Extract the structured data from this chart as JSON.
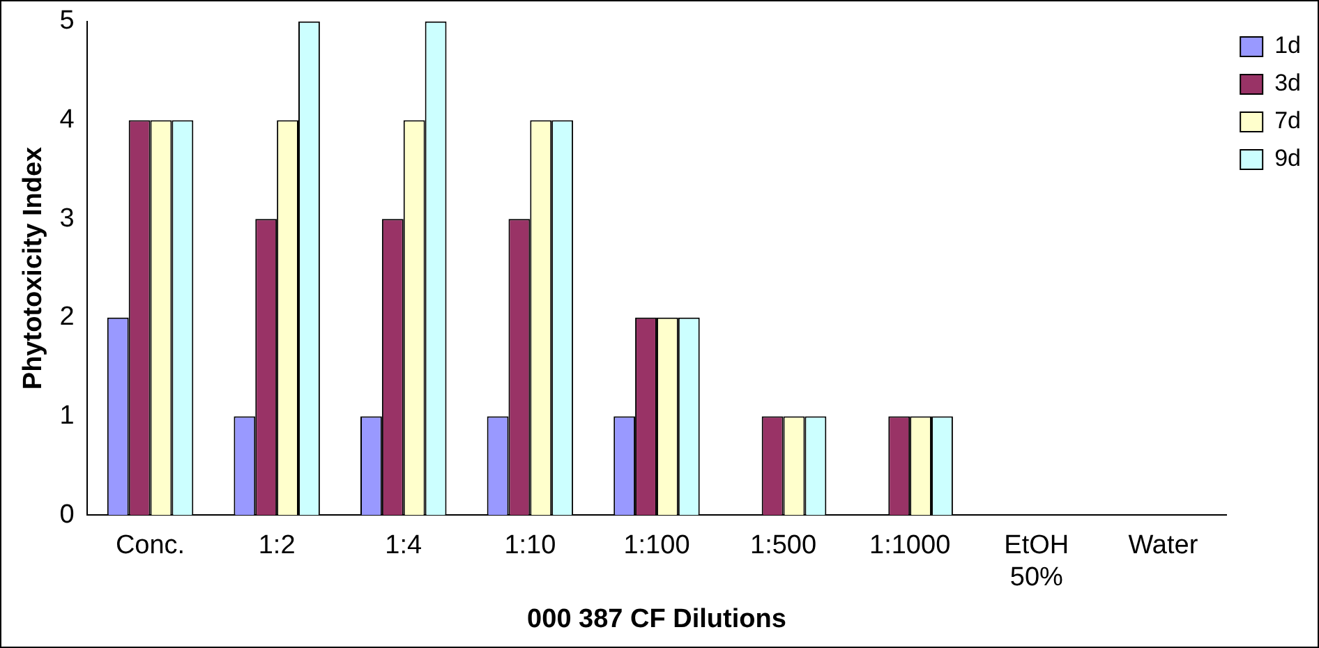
{
  "chart_data": {
    "type": "bar",
    "xlabel": "000 387 CF Dilutions",
    "ylabel": "Phytotoxicity Index",
    "categories": [
      "Conc.",
      "1:2",
      "1:4",
      "1:10",
      "1:100",
      "1:500",
      "1:1000",
      "EtOH 50%",
      "Water"
    ],
    "series": [
      {
        "name": "1d",
        "color": "#9999ff",
        "values": [
          2,
          1,
          1,
          1,
          1,
          0,
          0,
          0,
          0
        ]
      },
      {
        "name": "3d",
        "color": "#993366",
        "values": [
          4,
          3,
          3,
          3,
          2,
          1,
          1,
          0,
          0
        ]
      },
      {
        "name": "7d",
        "color": "#ffffcc",
        "values": [
          4,
          4,
          4,
          4,
          2,
          1,
          1,
          0,
          0
        ]
      },
      {
        "name": "9d",
        "color": "#ccffff",
        "values": [
          4,
          5,
          5,
          4,
          2,
          1,
          1,
          0,
          0
        ]
      }
    ],
    "ylim": [
      0,
      5
    ],
    "yticks": [
      0,
      1,
      2,
      3,
      4,
      5
    ],
    "grid": false,
    "legend": "top right"
  }
}
